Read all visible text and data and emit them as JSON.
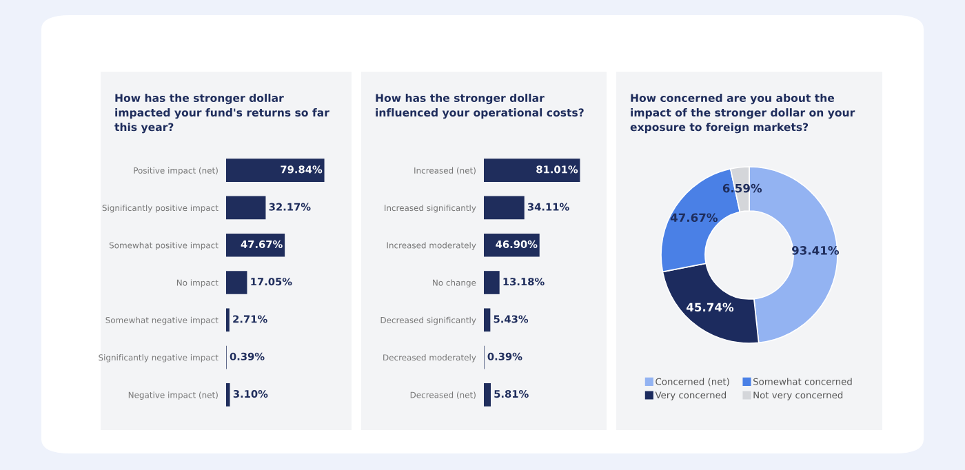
{
  "chart_data": [
    {
      "type": "bar",
      "orientation": "horizontal",
      "title": "How has the stronger dollar impacted your fund's returns so far this year?",
      "tick_labels": "y",
      "categories": [
        "Positive impact (net)",
        "Significantly positive impact",
        "Somewhat positive impact",
        "No impact",
        "Somewhat negative impact",
        "Significantly negative impact",
        "Negative impact (net)"
      ],
      "values": [
        79.84,
        32.17,
        47.67,
        17.05,
        2.71,
        0.39,
        3.1
      ],
      "value_labels": [
        "79.84%",
        "32.17%",
        "47.67%",
        "17.05%",
        "2.71%",
        "0.39%",
        "3.10%"
      ],
      "color": "#1f2d5c"
    },
    {
      "type": "bar",
      "orientation": "horizontal",
      "title": "How has the stronger dollar influenced your operational costs?",
      "tick_labels": "y",
      "categories": [
        "Increased (net)",
        "Increased significantly",
        "Increased moderately",
        "No change",
        "Decreased significantly",
        "Decreased moderately",
        "Decreased (net)"
      ],
      "values": [
        81.01,
        34.11,
        46.9,
        13.18,
        5.43,
        0.39,
        5.81
      ],
      "value_labels": [
        "81.01%",
        "34.11%",
        "46.90%",
        "13.18%",
        "5.43%",
        "0.39%",
        "5.81%"
      ],
      "color": "#1f2d5c"
    },
    {
      "type": "donut",
      "title": "How concerned are you about the impact of the stronger dollar on your exposure to foreign markets?",
      "legend": "bottom",
      "categories": [
        "Concerned (net)",
        "Very concerned",
        "Somewhat concerned",
        "Not very concerned"
      ],
      "values": [
        93.41,
        45.74,
        47.67,
        6.59
      ],
      "value_labels": [
        "93.41%",
        "45.74%",
        "47.67%",
        "6.59%"
      ],
      "colors": [
        "#93b3f2",
        "#1c2b5e",
        "#4a80e6",
        "#d4d6da"
      ]
    }
  ]
}
